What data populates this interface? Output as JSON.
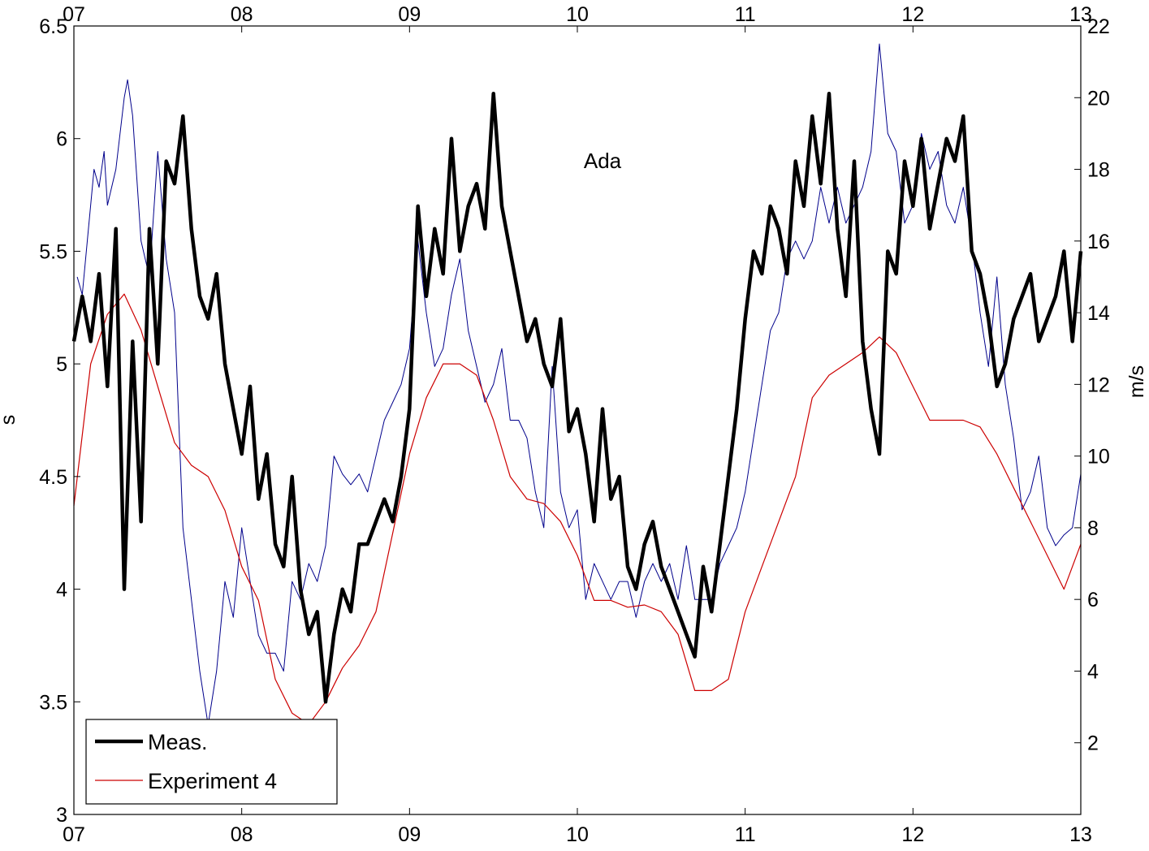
{
  "chart_data": {
    "type": "line",
    "annotation": "Ada",
    "xlabel": "",
    "ylabel_left": "s",
    "ylabel_right": "m/s",
    "xlim": [
      7,
      13
    ],
    "ylim_left": [
      3,
      6.5
    ],
    "ylim_right": [
      0,
      22
    ],
    "x_tick_labels": [
      "07",
      "08",
      "09",
      "10",
      "11",
      "12",
      "13"
    ],
    "y_left_ticks": [
      "3",
      "3.5",
      "4",
      "4.5",
      "5",
      "5.5",
      "6",
      "6.5"
    ],
    "y_right_ticks": [
      "2",
      "4",
      "6",
      "8",
      "10",
      "12",
      "14",
      "16",
      "18",
      "20",
      "22"
    ],
    "grid": false,
    "legend_position": "bottom-left",
    "colors": {
      "meas": "#000000",
      "exp4": "#cc0000",
      "wind": "#00008b"
    },
    "series": [
      {
        "name": "Meas.",
        "axis": "left",
        "color": "#000000",
        "x": [
          7.0,
          7.05,
          7.1,
          7.15,
          7.2,
          7.25,
          7.3,
          7.35,
          7.4,
          7.45,
          7.5,
          7.55,
          7.6,
          7.65,
          7.7,
          7.75,
          7.8,
          7.85,
          7.9,
          7.95,
          8.0,
          8.05,
          8.1,
          8.15,
          8.2,
          8.25,
          8.3,
          8.35,
          8.4,
          8.45,
          8.5,
          8.55,
          8.6,
          8.65,
          8.7,
          8.75,
          8.8,
          8.85,
          8.9,
          8.95,
          9.0,
          9.05,
          9.1,
          9.15,
          9.2,
          9.25,
          9.3,
          9.35,
          9.4,
          9.45,
          9.5,
          9.55,
          9.6,
          9.65,
          9.7,
          9.75,
          9.8,
          9.85,
          9.9,
          9.95,
          10.0,
          10.05,
          10.1,
          10.15,
          10.2,
          10.25,
          10.3,
          10.35,
          10.4,
          10.45,
          10.5,
          10.55,
          10.6,
          10.65,
          10.7,
          10.75,
          10.8,
          10.85,
          10.9,
          10.95,
          11.0,
          11.05,
          11.1,
          11.15,
          11.2,
          11.25,
          11.3,
          11.35,
          11.4,
          11.45,
          11.5,
          11.55,
          11.6,
          11.65,
          11.7,
          11.75,
          11.8,
          11.85,
          11.9,
          11.95,
          12.0,
          12.05,
          12.1,
          12.15,
          12.2,
          12.25,
          12.3,
          12.35,
          12.4,
          12.45,
          12.5,
          12.55,
          12.6,
          12.65,
          12.7,
          12.75,
          12.8,
          12.85,
          12.9,
          12.95,
          13.0
        ],
        "y": [
          5.1,
          5.3,
          5.1,
          5.4,
          4.9,
          5.6,
          4.0,
          5.1,
          4.3,
          5.6,
          5.0,
          5.9,
          5.8,
          6.1,
          5.6,
          5.3,
          5.2,
          5.4,
          5.0,
          4.8,
          4.6,
          4.9,
          4.4,
          4.6,
          4.2,
          4.1,
          4.5,
          4.0,
          3.8,
          3.9,
          3.5,
          3.8,
          4.0,
          3.9,
          4.2,
          4.2,
          4.3,
          4.4,
          4.3,
          4.5,
          4.8,
          5.7,
          5.3,
          5.6,
          5.4,
          6.0,
          5.5,
          5.7,
          5.8,
          5.6,
          6.2,
          5.7,
          5.5,
          5.3,
          5.1,
          5.2,
          5.0,
          4.9,
          5.2,
          4.7,
          4.8,
          4.6,
          4.3,
          4.8,
          4.4,
          4.5,
          4.1,
          4.0,
          4.2,
          4.3,
          4.1,
          4.0,
          3.9,
          3.8,
          3.7,
          4.1,
          3.9,
          4.2,
          4.5,
          4.8,
          5.2,
          5.5,
          5.4,
          5.7,
          5.6,
          5.4,
          5.9,
          5.7,
          6.1,
          5.8,
          6.2,
          5.6,
          5.3,
          5.9,
          5.1,
          4.8,
          4.6,
          5.5,
          5.4,
          5.9,
          5.7,
          6.0,
          5.6,
          5.8,
          6.0,
          5.9,
          6.1,
          5.5,
          5.4,
          5.2,
          4.9,
          5.0,
          5.2,
          5.3,
          5.4,
          5.1,
          5.2,
          5.3,
          5.5,
          5.1,
          5.5
        ]
      },
      {
        "name": "Experiment 4",
        "axis": "left",
        "color": "#cc0000",
        "x": [
          7.0,
          7.1,
          7.2,
          7.3,
          7.4,
          7.5,
          7.6,
          7.7,
          7.8,
          7.9,
          8.0,
          8.1,
          8.2,
          8.3,
          8.4,
          8.5,
          8.6,
          8.7,
          8.8,
          8.9,
          9.0,
          9.1,
          9.2,
          9.3,
          9.4,
          9.5,
          9.6,
          9.7,
          9.8,
          9.9,
          10.0,
          10.1,
          10.2,
          10.3,
          10.4,
          10.5,
          10.6,
          10.7,
          10.8,
          10.9,
          11.0,
          11.1,
          11.2,
          11.3,
          11.4,
          11.5,
          11.6,
          11.7,
          11.8,
          11.9,
          12.0,
          12.1,
          12.2,
          12.3,
          12.4,
          12.5,
          12.6,
          12.7,
          12.8,
          12.9,
          13.0
        ],
        "y": [
          4.37,
          5.0,
          5.22,
          5.31,
          5.15,
          4.9,
          4.65,
          4.55,
          4.5,
          4.35,
          4.1,
          3.95,
          3.6,
          3.45,
          3.4,
          3.5,
          3.65,
          3.75,
          3.9,
          4.25,
          4.6,
          4.85,
          5.0,
          5.0,
          4.95,
          4.75,
          4.5,
          4.4,
          4.38,
          4.3,
          4.15,
          3.95,
          3.95,
          3.92,
          3.93,
          3.9,
          3.8,
          3.55,
          3.55,
          3.6,
          3.9,
          4.1,
          4.3,
          4.5,
          4.85,
          4.95,
          5.0,
          5.05,
          5.12,
          5.05,
          4.9,
          4.75,
          4.75,
          4.75,
          4.72,
          4.6,
          4.45,
          4.3,
          4.15,
          4.0,
          4.2
        ]
      },
      {
        "name": "",
        "axis": "right",
        "color": "#00008b",
        "x": [
          7.02,
          7.05,
          7.08,
          7.12,
          7.15,
          7.18,
          7.2,
          7.25,
          7.3,
          7.32,
          7.35,
          7.4,
          7.45,
          7.5,
          7.55,
          7.6,
          7.65,
          7.7,
          7.75,
          7.8,
          7.85,
          7.9,
          7.95,
          8.0,
          8.05,
          8.1,
          8.15,
          8.2,
          8.25,
          8.3,
          8.35,
          8.4,
          8.45,
          8.5,
          8.55,
          8.6,
          8.65,
          8.7,
          8.75,
          8.8,
          8.85,
          8.9,
          8.95,
          9.0,
          9.05,
          9.1,
          9.15,
          9.2,
          9.25,
          9.3,
          9.35,
          9.4,
          9.45,
          9.5,
          9.55,
          9.6,
          9.65,
          9.7,
          9.75,
          9.8,
          9.85,
          9.9,
          9.95,
          10.0,
          10.05,
          10.1,
          10.15,
          10.2,
          10.25,
          10.3,
          10.35,
          10.4,
          10.45,
          10.5,
          10.55,
          10.6,
          10.65,
          10.7,
          10.75,
          10.8,
          10.85,
          10.9,
          10.95,
          11.0,
          11.05,
          11.1,
          11.15,
          11.2,
          11.25,
          11.3,
          11.35,
          11.4,
          11.45,
          11.5,
          11.55,
          11.6,
          11.65,
          11.7,
          11.75,
          11.8,
          11.85,
          11.9,
          11.95,
          12.0,
          12.05,
          12.1,
          12.15,
          12.2,
          12.25,
          12.3,
          12.35,
          12.4,
          12.45,
          12.5,
          12.55,
          12.6,
          12.65,
          12.7,
          12.75,
          12.8,
          12.85,
          12.9,
          12.95,
          13.0
        ],
        "y": [
          15.0,
          14.5,
          16.0,
          18.0,
          17.5,
          18.5,
          17.0,
          18.0,
          20.0,
          20.5,
          19.5,
          16.0,
          15.0,
          18.5,
          15.5,
          14.0,
          8.0,
          6.0,
          4.0,
          2.5,
          4.0,
          6.5,
          5.5,
          8.0,
          6.5,
          5.0,
          4.5,
          4.5,
          4.0,
          6.5,
          6.0,
          7.0,
          6.5,
          7.5,
          10.0,
          9.5,
          9.2,
          9.5,
          9.0,
          10.0,
          11.0,
          11.5,
          12.0,
          13.0,
          16.0,
          14.0,
          12.5,
          13.0,
          14.5,
          15.5,
          13.5,
          12.5,
          11.5,
          12.0,
          13.0,
          11.0,
          11.0,
          10.5,
          9.0,
          8.0,
          12.5,
          9.0,
          8.0,
          8.5,
          6.0,
          7.0,
          6.5,
          6.0,
          6.5,
          6.5,
          5.5,
          6.5,
          7.0,
          6.5,
          7.0,
          6.0,
          7.5,
          6.0,
          6.0,
          6.0,
          7.0,
          7.5,
          8.0,
          9.0,
          10.5,
          12.0,
          13.5,
          14.0,
          15.5,
          16.0,
          15.5,
          16.0,
          17.5,
          16.5,
          17.5,
          16.5,
          17.0,
          17.5,
          18.5,
          21.5,
          19.0,
          18.5,
          16.5,
          17.0,
          19.0,
          18.0,
          18.5,
          17.0,
          16.5,
          17.5,
          16.0,
          14.0,
          12.5,
          15.0,
          12.0,
          10.5,
          8.5,
          9.0,
          10.0,
          8.0,
          7.5,
          7.8,
          8.0,
          9.5
        ]
      }
    ]
  }
}
